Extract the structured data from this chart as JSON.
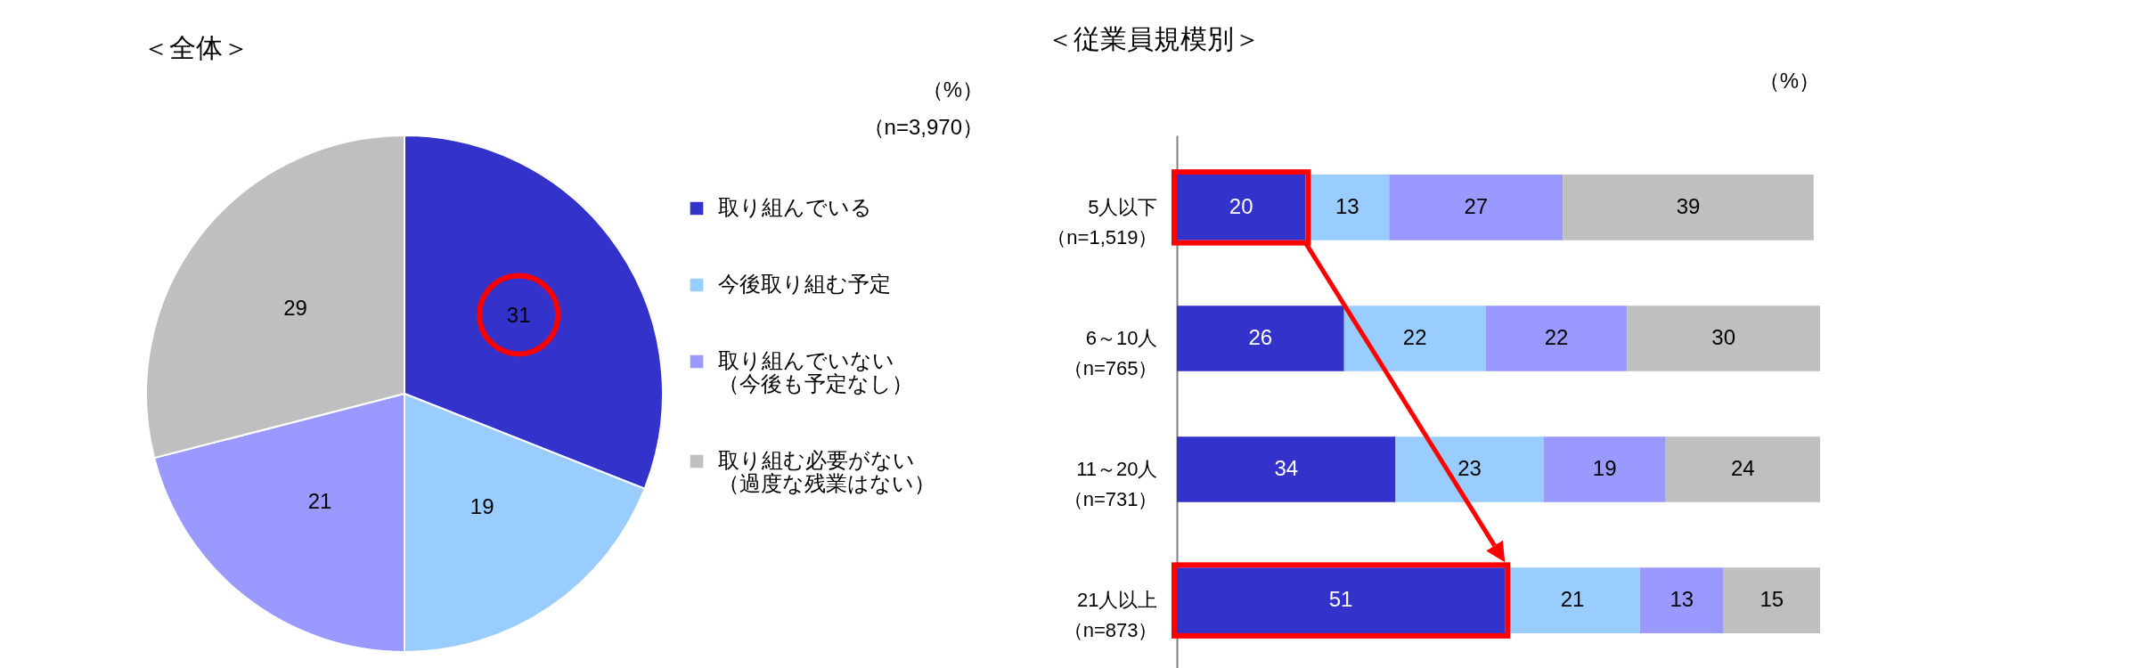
{
  "chart_data": [
    {
      "type": "pie",
      "title": "＜全体＞",
      "categories": [
        "取り組んでいる",
        "今後取り組む予定",
        "取り組んでいない（今後も予定なし）",
        "取り組む必要がない（過度な残業はない）"
      ],
      "values": [
        31,
        19,
        21,
        29
      ],
      "colors": [
        "#3333cc",
        "#99ccff",
        "#9999ff",
        "#bfbfbf"
      ],
      "data_labels": true,
      "legend": "right",
      "annotations": [
        "（%）",
        "（n=3,970）"
      ]
    },
    {
      "type": "bar",
      "title": "＜従業員規模別＞",
      "orientation": "horizontal",
      "stacked": true,
      "data_labels": true,
      "tick_labels": "y",
      "annotations": [
        "（%）"
      ],
      "categories": [
        "5人以下（n=1,519）",
        "6～10人（n=765）",
        "11～20人（n=731）",
        "21人以上（n=873）"
      ],
      "series": [
        {
          "color": "#3333cc",
          "values": [
            20,
            26,
            34,
            51
          ]
        },
        {
          "color": "#99ccff",
          "values": [
            13,
            22,
            23,
            21
          ]
        },
        {
          "color": "#9999ff",
          "values": [
            27,
            22,
            19,
            13
          ]
        },
        {
          "color": "#bfbfbf",
          "values": [
            39,
            30,
            24,
            15
          ]
        }
      ]
    }
  ]
}
